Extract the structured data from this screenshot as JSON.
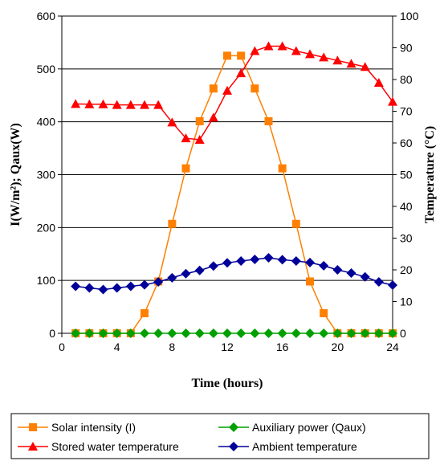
{
  "chart_data": {
    "type": "line",
    "xlabel": "Time (hours)",
    "ylabel_left": "I(W/m²); Qaux(W)",
    "ylabel_right": "Temperature (°C)",
    "xlim": [
      0,
      24
    ],
    "xticks": [
      0,
      4,
      8,
      12,
      16,
      20,
      24
    ],
    "ylim_left": [
      0,
      600
    ],
    "yticks_left": [
      0,
      100,
      200,
      300,
      400,
      500,
      600
    ],
    "ylim_right": [
      0,
      100
    ],
    "yticks_right": [
      0,
      10,
      20,
      30,
      40,
      50,
      60,
      70,
      80,
      90,
      100
    ],
    "grid": "horizontal",
    "legend_position": "bottom",
    "series": [
      {
        "name": "Solar intensity (I)",
        "axis": "left",
        "color": "#FF8000",
        "marker": "square",
        "x": [
          1,
          2,
          3,
          4,
          5,
          6,
          7,
          8,
          9,
          10,
          11,
          12,
          13,
          14,
          15,
          16,
          17,
          18,
          19,
          20,
          21,
          22,
          23,
          24
        ],
        "y": [
          0,
          0,
          0,
          0,
          0,
          38,
          98,
          207,
          312,
          401,
          463,
          525,
          525,
          463,
          401,
          312,
          207,
          98,
          38,
          0,
          0,
          0,
          0,
          0
        ]
      },
      {
        "name": "Auxiliary power (Qaux)",
        "axis": "left",
        "color": "#00A000",
        "marker": "diamond",
        "x": [
          1,
          2,
          3,
          4,
          5,
          6,
          7,
          8,
          9,
          10,
          11,
          12,
          13,
          14,
          15,
          16,
          17,
          18,
          19,
          20,
          21,
          22,
          23,
          24
        ],
        "y": [
          0,
          0,
          0,
          0,
          0,
          0,
          0,
          0,
          0,
          0,
          0,
          0,
          0,
          0,
          0,
          0,
          0,
          0,
          0,
          0,
          0,
          0,
          0,
          0
        ]
      },
      {
        "name": "Stored water temperature",
        "axis": "right",
        "color": "#FF0000",
        "marker": "triangle",
        "x": [
          1,
          2,
          3,
          4,
          5,
          6,
          7,
          8,
          9,
          10,
          11,
          12,
          13,
          14,
          15,
          16,
          17,
          18,
          19,
          20,
          21,
          22,
          23,
          24
        ],
        "y": [
          72.3,
          72.2,
          72.2,
          72.0,
          72.0,
          72.0,
          72.0,
          66.5,
          61.5,
          61.0,
          68.0,
          76.5,
          82.0,
          89.0,
          90.5,
          90.5,
          89.0,
          88.0,
          87.0,
          86.0,
          85.0,
          84.0,
          79.0,
          73.0
        ]
      },
      {
        "name": "Ambient temperature",
        "axis": "right",
        "color": "#000099",
        "marker": "diamond",
        "x": [
          1,
          2,
          3,
          4,
          5,
          6,
          7,
          8,
          9,
          10,
          11,
          12,
          13,
          14,
          15,
          16,
          17,
          18,
          19,
          20,
          21,
          22,
          23,
          24
        ],
        "y": [
          14.8,
          14.3,
          13.8,
          14.3,
          14.8,
          15.3,
          16.2,
          17.5,
          18.8,
          19.8,
          21.2,
          22.2,
          22.8,
          23.3,
          23.8,
          23.2,
          22.8,
          22.3,
          21.3,
          20.0,
          19.0,
          17.8,
          16.2,
          15.2
        ]
      }
    ],
    "legend_order": [
      0,
      1,
      2,
      3
    ]
  }
}
